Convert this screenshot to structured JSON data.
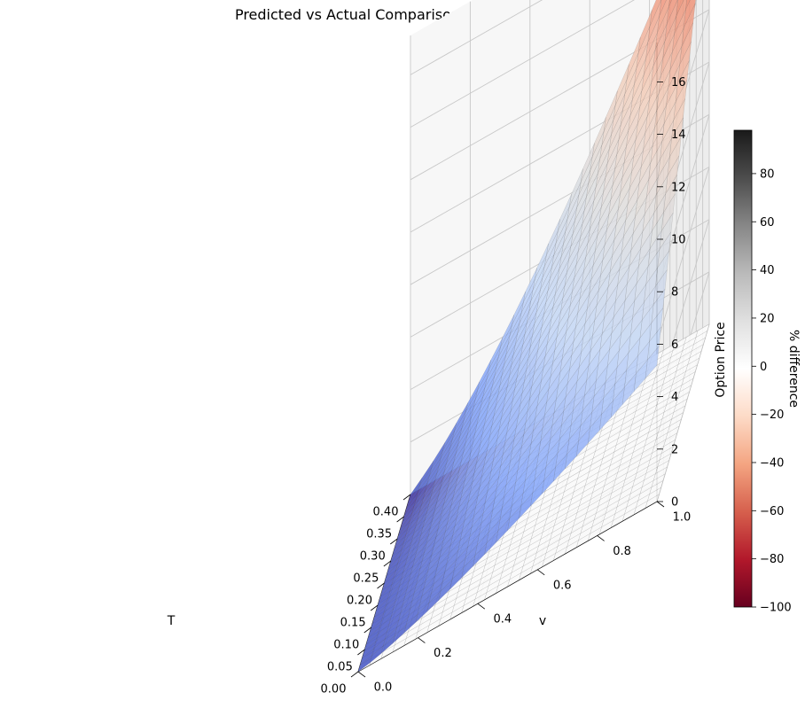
{
  "chart_data": {
    "type": "surface3d",
    "title": "Predicted vs Actual Comparison",
    "xlabel": "T",
    "ylabel": "v",
    "zlabel": "Option Price",
    "xlim": [
      0.0,
      0.4
    ],
    "ylim": [
      0.0,
      1.0
    ],
    "zlim": [
      0,
      17.5
    ],
    "x_ticks": [
      "0.00",
      "0.05",
      "0.10",
      "0.15",
      "0.20",
      "0.25",
      "0.30",
      "0.35",
      "0.40"
    ],
    "y_ticks": [
      "0.0",
      "0.2",
      "0.4",
      "0.6",
      "0.8",
      "1.0"
    ],
    "z_ticks": [
      "0",
      "2",
      "4",
      "6",
      "8",
      "10",
      "12",
      "14",
      "16"
    ],
    "grid": true,
    "surfaces": [
      {
        "role": "option price surface",
        "colormap": "coolwarm",
        "corner_values": [
          {
            "T": 0.0,
            "v": 0.0,
            "price": 0.0
          },
          {
            "T": 0.4,
            "v": 0.0,
            "price": 0.3
          },
          {
            "T": 0.0,
            "v": 1.0,
            "price": 5.2
          },
          {
            "T": 0.4,
            "v": 1.0,
            "price": 17.3
          }
        ]
      },
      {
        "role": "% difference surface",
        "colormap": "RdGy",
        "value_range": [
          -100,
          98
        ]
      }
    ],
    "colorbar": {
      "label": "% difference",
      "range": [
        -100,
        98
      ],
      "ticks": [
        "80",
        "60",
        "40",
        "20",
        "0",
        "−20",
        "−40",
        "−60",
        "−80",
        "−100"
      ],
      "colors": [
        "#1a1a1a",
        "#4d4d4d",
        "#878787",
        "#bababa",
        "#e0e0e0",
        "#ffffff",
        "#fddbc7",
        "#f4a582",
        "#d6604d",
        "#b2182b",
        "#67001f"
      ]
    }
  }
}
